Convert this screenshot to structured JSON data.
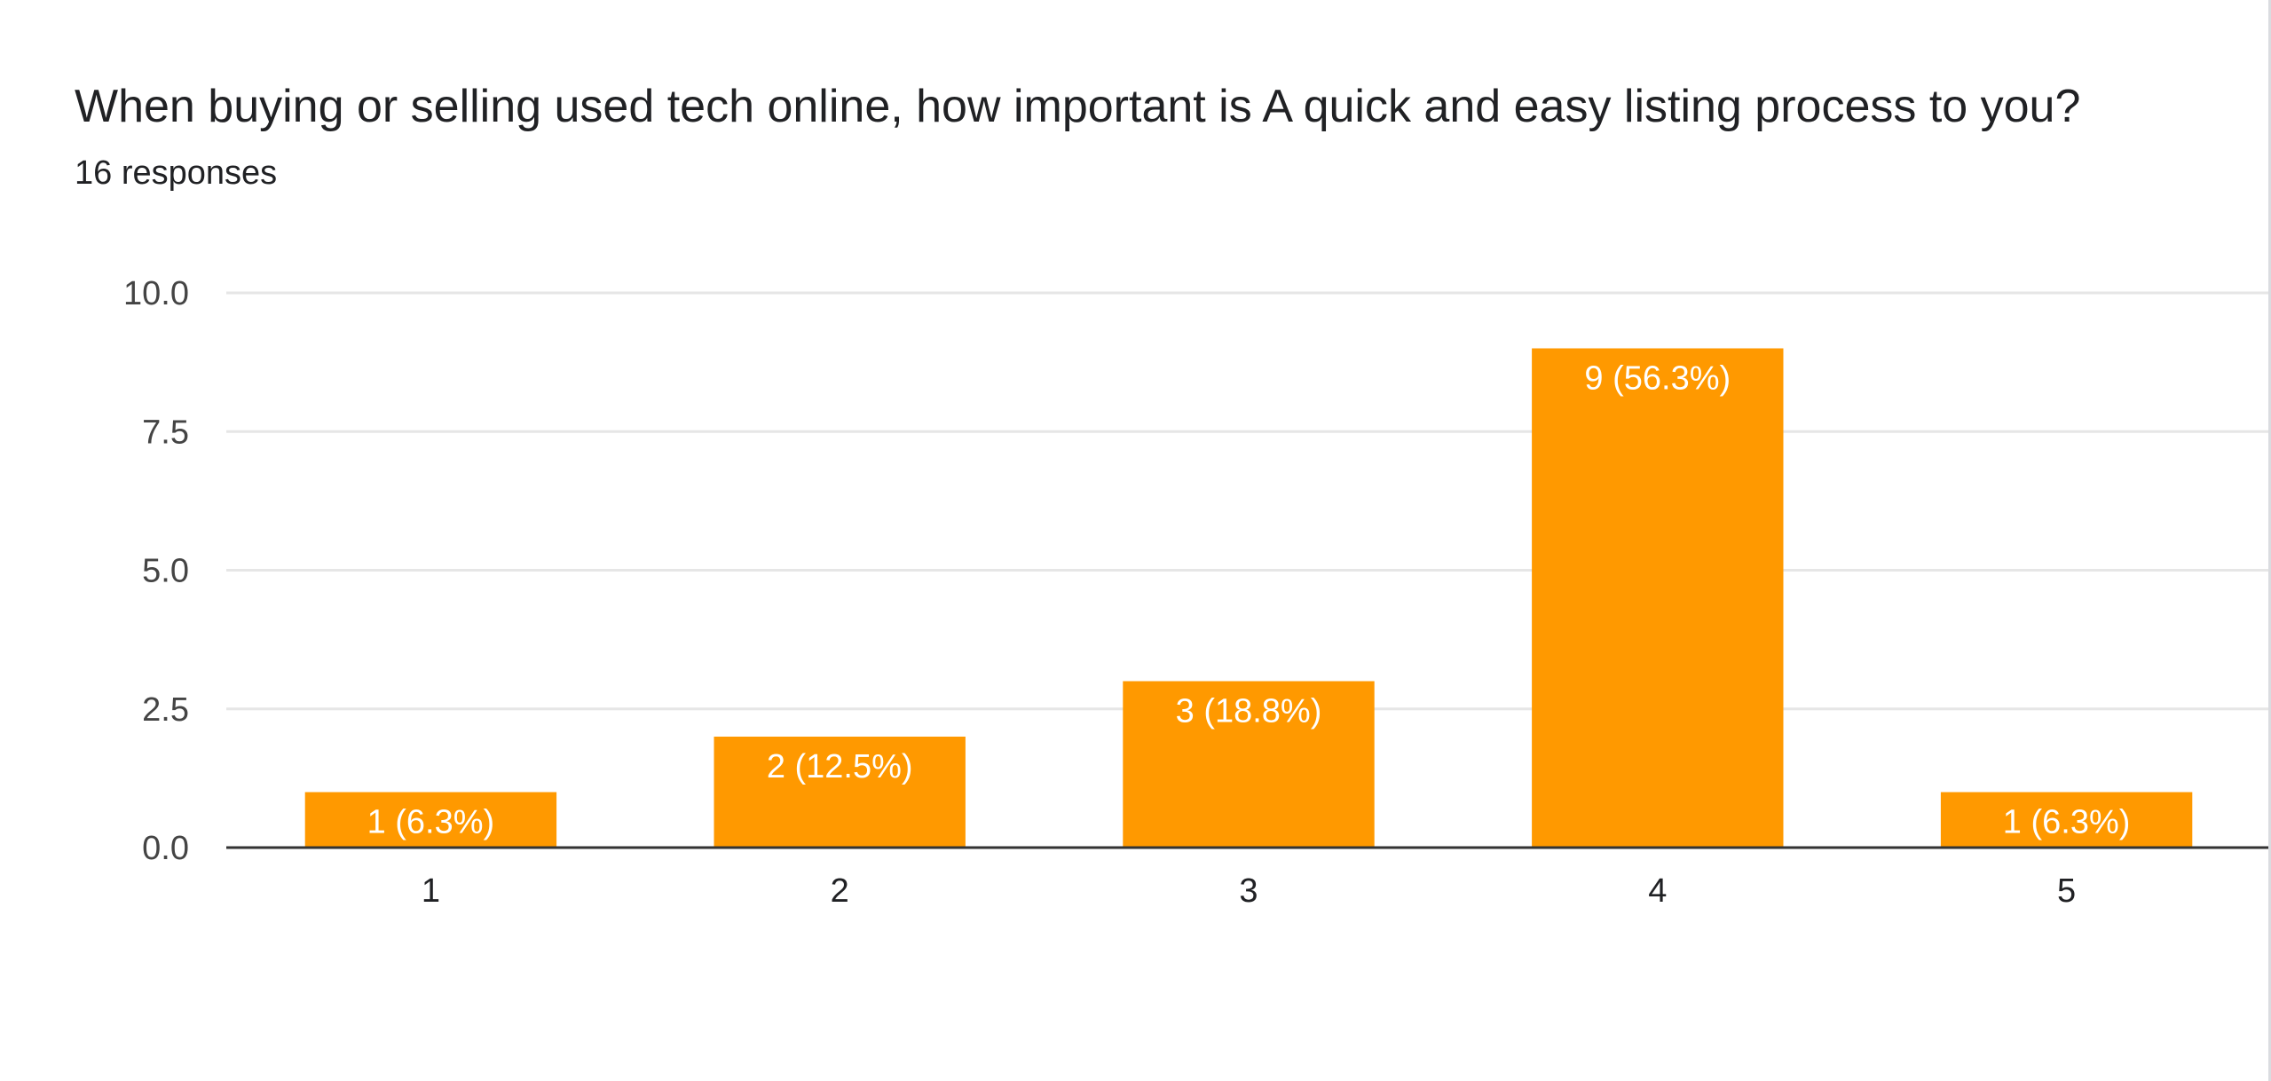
{
  "question": {
    "title": "When buying or selling used tech online, how important is A quick and easy listing process to you?",
    "responses": "16 responses"
  },
  "colors": {
    "bar": "#ff9900",
    "bar_label": "#ffffff",
    "gridline": "#e6e6e6",
    "axis_line": "#333333",
    "tick_label": "#444444",
    "text": "#202124"
  },
  "chart_data": {
    "type": "bar",
    "title": "When buying or selling used tech online, how important is A quick and easy listing process to you?",
    "subtitle": "16 responses",
    "categories": [
      "1",
      "2",
      "3",
      "4",
      "5"
    ],
    "values": [
      1,
      2,
      3,
      9,
      1
    ],
    "data_labels": [
      "1 (6.3%)",
      "2 (12.5%)",
      "3 (18.8%)",
      "9 (56.3%)",
      "1 (6.3%)"
    ],
    "xlabel": "",
    "ylabel": "",
    "ylim": [
      0,
      10
    ],
    "yticks": [
      "0.0",
      "2.5",
      "5.0",
      "7.5",
      "10.0"
    ],
    "grid": true,
    "legend": "none"
  }
}
